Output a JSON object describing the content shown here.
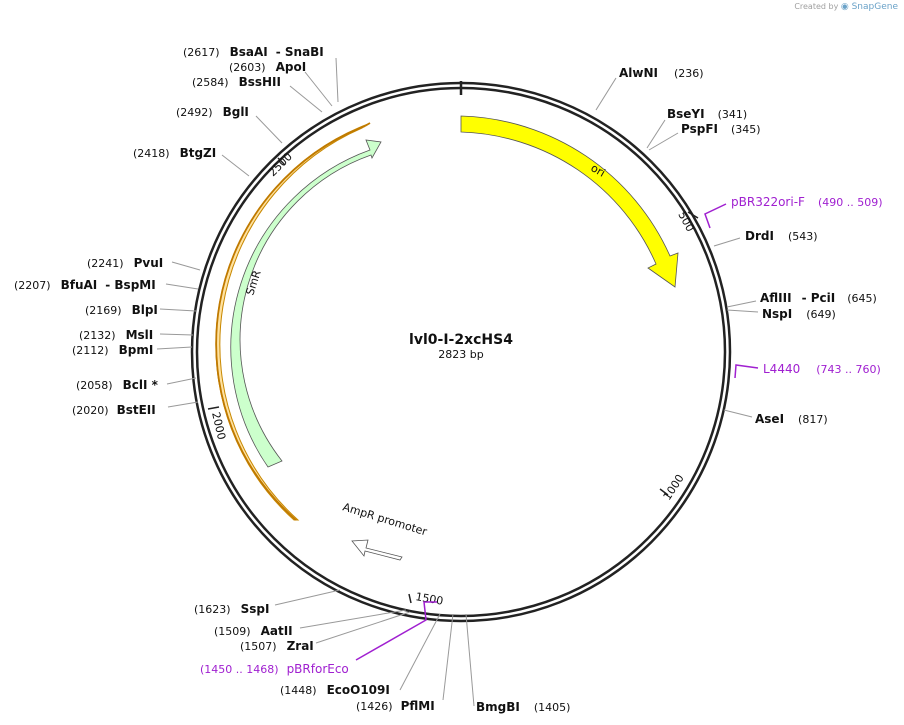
{
  "credit": {
    "prefix": "Created by",
    "brand": "SnapGene"
  },
  "plasmid": {
    "name": "lvl0-I-2xcHS4",
    "length": "2823 bp"
  },
  "ticks": [
    "500",
    "1000",
    "1500",
    "2000",
    "2500"
  ],
  "features": [
    {
      "name": "ori",
      "color": "#ffff00"
    },
    {
      "name": "SmR",
      "color": "#ccffcc"
    },
    {
      "name": "AmpR promoter",
      "color": "#ffffff"
    }
  ],
  "enzymes": [
    {
      "name": "AlwNI",
      "pos": "(236)"
    },
    {
      "name": "BseYI",
      "pos": "(341)"
    },
    {
      "name": "PspFI",
      "pos": "(345)"
    },
    {
      "name": "DrdI",
      "pos": "(543)"
    },
    {
      "name": "AflIII",
      "sep": "- PciI",
      "pos": "(645)"
    },
    {
      "name": "NspI",
      "pos": "(649)"
    },
    {
      "name": "AseI",
      "pos": "(817)"
    },
    {
      "name": "BmgBI",
      "pos": "(1405)"
    },
    {
      "name": "PflMI",
      "pos": "(1426)"
    },
    {
      "name": "EcoO109I",
      "pos": "(1448)"
    },
    {
      "name": "ZraI",
      "pos": "(1507)"
    },
    {
      "name": "AatII",
      "pos": "(1509)"
    },
    {
      "name": "SspI",
      "pos": "(1623)"
    },
    {
      "name": "BstEII",
      "pos": "(2020)"
    },
    {
      "name": "BclI *",
      "pos": "(2058)"
    },
    {
      "name": "BpmI",
      "pos": "(2112)"
    },
    {
      "name": "MslI",
      "pos": "(2132)"
    },
    {
      "name": "BlpI",
      "pos": "(2169)"
    },
    {
      "name": "BfuAI",
      "sep": "- BspMI",
      "pos": "(2207)"
    },
    {
      "name": "PvuI",
      "pos": "(2241)"
    },
    {
      "name": "BtgZI",
      "pos": "(2418)"
    },
    {
      "name": "BglI",
      "pos": "(2492)"
    },
    {
      "name": "BssHII",
      "pos": "(2584)"
    },
    {
      "name": "ApoI",
      "pos": "(2603)"
    },
    {
      "name": "BsaAI",
      "sep": "- SnaBI",
      "pos": "(2617)"
    }
  ],
  "primers": [
    {
      "name": "pBR322ori-F",
      "pos": "(490 .. 509)"
    },
    {
      "name": "L4440",
      "pos": "(743 .. 760)"
    },
    {
      "name": "pBRforEco",
      "pos": "(1450 .. 1468)"
    }
  ]
}
